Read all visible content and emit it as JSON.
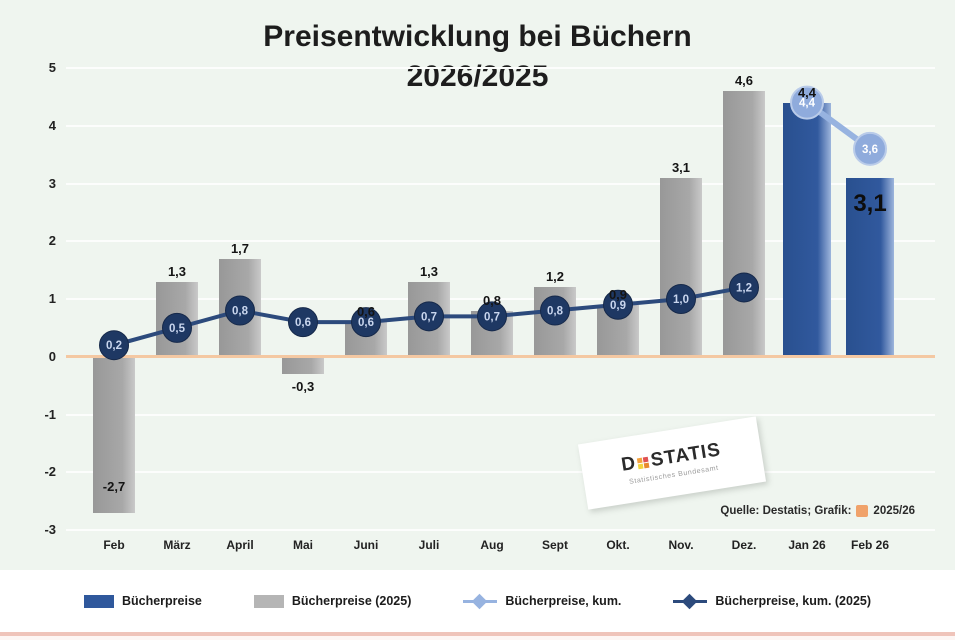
{
  "page": {
    "background": "#eff5ef",
    "grid_color": "#fcfdfc",
    "zero_line_color": "#f4c8a2",
    "bottom_accent_color": "#efc4ba"
  },
  "title": {
    "line1": "Preisentwicklung bei Büchern",
    "line2": "2026/2025"
  },
  "watermark": {
    "logo_prefix": "D",
    "logo_suffix": "STATIS",
    "subline": "Statistisches Bundesamt",
    "square_colors": [
      "#f5a13d",
      "#e05252",
      "#f3d43b",
      "#e88a2e"
    ]
  },
  "source": {
    "prefix": "Quelle: Destatis; Grafik:",
    "suffix": "2025/26",
    "logo_color": "#f0a26a"
  },
  "chart_data": {
    "type": "bar",
    "combo": "bar+line",
    "title": "Preisentwicklung bei Büchern 2026/2025",
    "categories": [
      "Feb",
      "März",
      "April",
      "Mai",
      "Juni",
      "Juli",
      "Aug",
      "Sept",
      "Okt.",
      "Nov.",
      "Dez.",
      "Jan 26",
      "Feb 26"
    ],
    "ylim": [
      -3,
      5
    ],
    "yticks": [
      "5",
      "4",
      "3",
      "2",
      "1",
      "0",
      "-1",
      "-2",
      "-3"
    ],
    "grid": true,
    "legend_position": "bottom",
    "series": [
      {
        "name": "Bücherpreise (2025)",
        "type": "bar",
        "color": "#a6a6a6",
        "values": [
          -2.7,
          1.3,
          1.7,
          -0.3,
          0.6,
          1.3,
          0.8,
          1.2,
          0.9,
          3.1,
          4.6,
          null,
          null
        ],
        "labels": [
          "-2,7",
          "1,3",
          "1,7",
          "-0,3",
          "0,6",
          "1,3",
          "0,8",
          "1,2",
          "0,9",
          "3,1",
          "4,6",
          "",
          ""
        ],
        "label_pos": [
          "inside-bottom",
          "above",
          "above",
          "below",
          "above",
          "above",
          "above",
          "above",
          "above",
          "above",
          "above",
          "",
          ""
        ]
      },
      {
        "name": "Bücherpreise",
        "type": "bar",
        "color": "#2f589c",
        "values": [
          null,
          null,
          null,
          null,
          null,
          null,
          null,
          null,
          null,
          null,
          null,
          4.4,
          3.1
        ],
        "labels": [
          "",
          "",
          "",
          "",
          "",
          "",
          "",
          "",
          "",
          "",
          "",
          "4,4",
          "3,1"
        ],
        "label_pos": [
          "",
          "",
          "",
          "",
          "",
          "",
          "",
          "",
          "",
          "",
          "",
          "above",
          "inside-top"
        ]
      },
      {
        "name": "Bücherpreise, kum. (2025)",
        "type": "line",
        "color": "#2c4a7c",
        "marker_color": "#1e3863",
        "marker_text_color": "#c9d6ee",
        "values": [
          0.2,
          0.5,
          0.8,
          0.6,
          0.6,
          0.7,
          0.7,
          0.8,
          0.9,
          1.0,
          1.2,
          null,
          null
        ],
        "marker_labels": [
          "0,2",
          "0,5",
          "0,8",
          "0,6",
          "0,6",
          "0,7",
          "0,7",
          "0,8",
          "0,9",
          "1,0",
          "1,2",
          "",
          ""
        ]
      },
      {
        "name": "Bücherpreise, kum.",
        "type": "line",
        "color": "#97b3e0",
        "marker_color": "#8fabdc",
        "marker_text_color": "#ffffff",
        "values": [
          null,
          null,
          null,
          null,
          null,
          null,
          null,
          null,
          null,
          null,
          null,
          4.4,
          3.6
        ],
        "marker_labels": [
          "",
          "",
          "",
          "",
          "",
          "",
          "",
          "",
          "",
          "",
          "",
          "4,4",
          "3,6"
        ]
      }
    ],
    "legend": [
      {
        "swatch": "bar",
        "color": "#2f589c",
        "label": "Bücherpreise"
      },
      {
        "swatch": "bar",
        "color": "#b5b5b5",
        "label": "Bücherpreise (2025)"
      },
      {
        "swatch": "line",
        "color": "#97b3e0",
        "label": "Bücherpreise, kum."
      },
      {
        "swatch": "line",
        "color": "#2c4a7c",
        "label": "Bücherpreise, kum. (2025)"
      }
    ]
  }
}
